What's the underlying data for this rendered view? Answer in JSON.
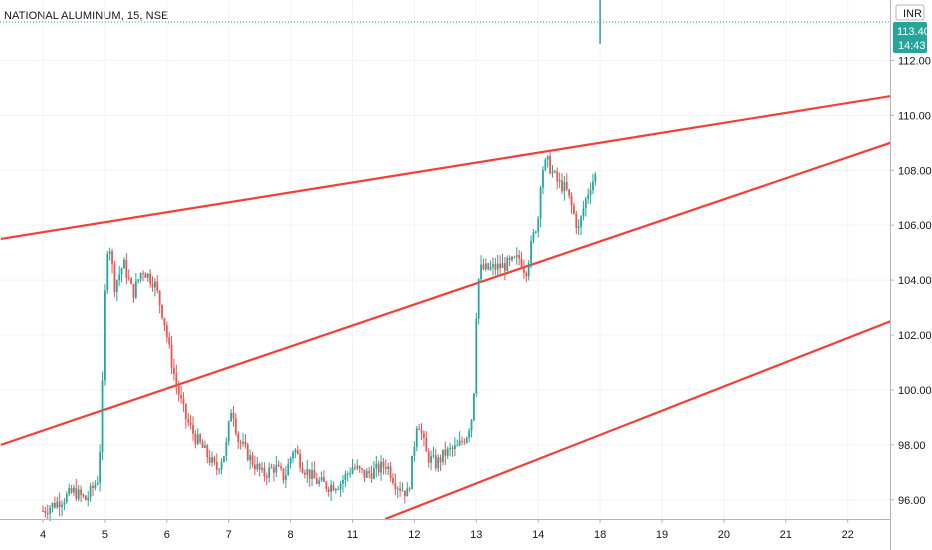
{
  "header": {
    "title": "NATIONAL ALUMINUM, 15, NSE"
  },
  "price_badge": {
    "currency": "INR",
    "price": "113.40",
    "countdown": "14:43"
  },
  "colors": {
    "up": "#26a69a",
    "down": "#ef5350",
    "trendline": "#f23f38",
    "grid": "#f0f3fa",
    "axis_text": "#131722",
    "price_line": "#26a69a"
  },
  "chart_data": {
    "type": "candlestick",
    "title": "NATIONAL ALUMINUM, 15, NSE",
    "x_ticks": [
      "4",
      "5",
      "6",
      "7",
      "8",
      "11",
      "12",
      "13",
      "14",
      "18",
      "19",
      "20",
      "21",
      "22"
    ],
    "y_ticks": [
      "96.00",
      "98.00",
      "100.00",
      "102.00",
      "104.00",
      "106.00",
      "108.00",
      "110.00",
      "112.00"
    ],
    "ylim": [
      95.3,
      114.2
    ],
    "last_price": 113.4,
    "price_series": [
      {
        "x": 0.0,
        "y": 95.6
      },
      {
        "x": 0.3,
        "y": 96.0
      },
      {
        "x": 0.5,
        "y": 96.3
      },
      {
        "x": 0.7,
        "y": 96.0
      },
      {
        "x": 0.9,
        "y": 96.8
      },
      {
        "x": 0.95,
        "y": 99.1
      },
      {
        "x": 1.0,
        "y": 103.5
      },
      {
        "x": 1.05,
        "y": 105.7
      },
      {
        "x": 1.15,
        "y": 103.8
      },
      {
        "x": 1.3,
        "y": 104.6
      },
      {
        "x": 1.45,
        "y": 103.5
      },
      {
        "x": 1.6,
        "y": 104.4
      },
      {
        "x": 1.8,
        "y": 103.9
      },
      {
        "x": 1.95,
        "y": 102.6
      },
      {
        "x": 2.05,
        "y": 101.3
      },
      {
        "x": 2.15,
        "y": 100.2
      },
      {
        "x": 2.3,
        "y": 99.0
      },
      {
        "x": 2.45,
        "y": 98.3
      },
      {
        "x": 2.6,
        "y": 97.8
      },
      {
        "x": 2.8,
        "y": 97.1
      },
      {
        "x": 2.95,
        "y": 97.8
      },
      {
        "x": 3.05,
        "y": 99.5
      },
      {
        "x": 3.15,
        "y": 98.2
      },
      {
        "x": 3.35,
        "y": 97.5
      },
      {
        "x": 3.55,
        "y": 96.9
      },
      {
        "x": 3.75,
        "y": 97.2
      },
      {
        "x": 3.9,
        "y": 96.8
      },
      {
        "x": 4.05,
        "y": 97.9
      },
      {
        "x": 4.2,
        "y": 97.2
      },
      {
        "x": 4.4,
        "y": 96.7
      },
      {
        "x": 4.6,
        "y": 96.5
      },
      {
        "x": 4.8,
        "y": 96.6
      },
      {
        "x": 5.0,
        "y": 97.2
      },
      {
        "x": 5.2,
        "y": 96.9
      },
      {
        "x": 5.4,
        "y": 97.1
      },
      {
        "x": 5.55,
        "y": 97.3
      },
      {
        "x": 5.7,
        "y": 96.6
      },
      {
        "x": 5.85,
        "y": 96.3
      },
      {
        "x": 5.9,
        "y": 96.2
      },
      {
        "x": 6.05,
        "y": 99.0
      },
      {
        "x": 6.2,
        "y": 97.6
      },
      {
        "x": 6.35,
        "y": 97.3
      },
      {
        "x": 6.5,
        "y": 97.7
      },
      {
        "x": 6.7,
        "y": 97.9
      },
      {
        "x": 6.85,
        "y": 98.4
      },
      {
        "x": 6.95,
        "y": 99.2
      },
      {
        "x": 7.0,
        "y": 102.8
      },
      {
        "x": 7.05,
        "y": 104.4
      },
      {
        "x": 7.2,
        "y": 104.4
      },
      {
        "x": 7.4,
        "y": 104.5
      },
      {
        "x": 7.55,
        "y": 104.6
      },
      {
        "x": 7.7,
        "y": 104.8
      },
      {
        "x": 7.8,
        "y": 104.3
      },
      {
        "x": 7.9,
        "y": 105.4
      },
      {
        "x": 8.0,
        "y": 106.3
      },
      {
        "x": 8.05,
        "y": 108.0
      },
      {
        "x": 8.15,
        "y": 108.3
      },
      {
        "x": 8.3,
        "y": 107.6
      },
      {
        "x": 8.45,
        "y": 107.3
      },
      {
        "x": 8.55,
        "y": 106.6
      },
      {
        "x": 8.65,
        "y": 105.8
      },
      {
        "x": 8.75,
        "y": 106.8
      },
      {
        "x": 8.85,
        "y": 107.5
      },
      {
        "x": 8.95,
        "y": 107.9
      }
    ],
    "last_bar": {
      "x": 9.0,
      "open": 113.4,
      "high": 114.8,
      "low": 112.6,
      "close": 113.4
    },
    "trendlines": [
      {
        "x1": -0.68,
        "y1": 105.5,
        "x2": 13.69,
        "y2": 110.7
      },
      {
        "x1": -0.68,
        "y1": 98.0,
        "x2": 13.69,
        "y2": 109.0
      },
      {
        "x1": 5.53,
        "y1": 95.3,
        "x2": 13.69,
        "y2": 102.5
      }
    ]
  }
}
